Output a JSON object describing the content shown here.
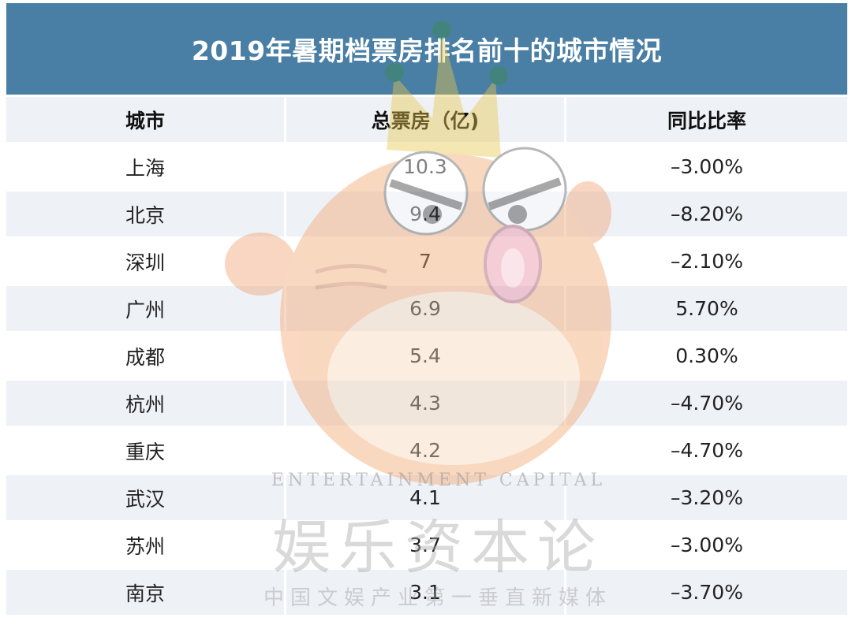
{
  "title": "2019年暑期档票房排名前十的城市情况",
  "headers": [
    "城市",
    "总票房（亿)",
    "同比比率"
  ],
  "rows": [
    {
      "city": "上海",
      "box_office": "10.3",
      "yoy": "–3.00%"
    },
    {
      "city": "北京",
      "box_office": "9.4",
      "yoy": "–8.20%"
    },
    {
      "city": "深圳",
      "box_office": "7",
      "yoy": "–2.10%"
    },
    {
      "city": "广州",
      "box_office": "6.9",
      "yoy": "5.70%"
    },
    {
      "city": "成都",
      "box_office": "5.4",
      "yoy": "0.30%"
    },
    {
      "city": "杭州",
      "box_office": "4.3",
      "yoy": "–4.70%"
    },
    {
      "city": "重庆",
      "box_office": "4.2",
      "yoy": "–4.70%"
    },
    {
      "city": "武汉",
      "box_office": "4.1",
      "yoy": "–3.20%"
    },
    {
      "city": "苏州",
      "box_office": "3.7",
      "yoy": "–3.00%"
    },
    {
      "city": "南京",
      "box_office": "3.1",
      "yoy": "–3.70%"
    }
  ],
  "watermark": {
    "english": "ENTERTAINMENT CAPITAL",
    "chinese": "娱乐资本论",
    "tagline": "中国文娱产业第一垂直新媒体"
  },
  "colors": {
    "title_bg": "#4a7fa5",
    "header_bg": "#eef1f6",
    "stripe_bg": "#eef1f6"
  }
}
